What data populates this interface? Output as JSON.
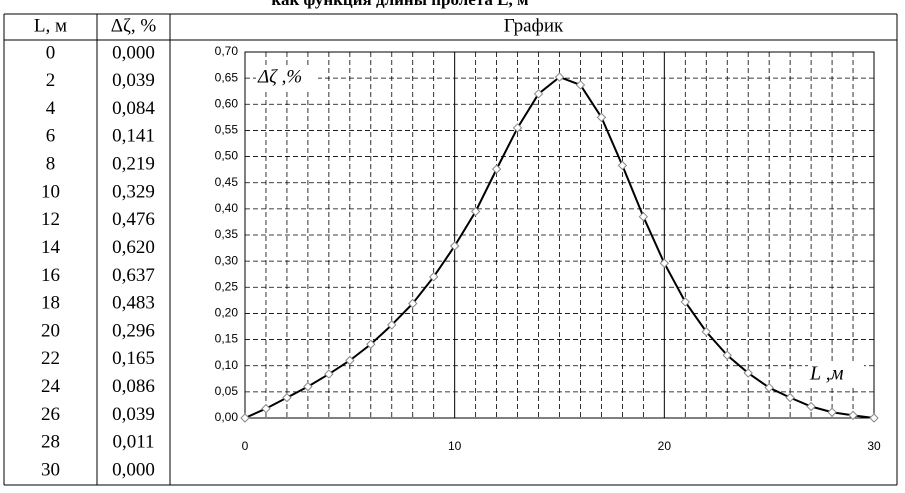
{
  "title": "как функция длины пролета L, м",
  "table": {
    "headers": [
      "L, м",
      "Δζ, %",
      "График"
    ],
    "rows": [
      [
        "0",
        "0,000"
      ],
      [
        "2",
        "0,039"
      ],
      [
        "4",
        "0,084"
      ],
      [
        "6",
        "0,141"
      ],
      [
        "8",
        "0,219"
      ],
      [
        "10",
        "0,329"
      ],
      [
        "12",
        "0,476"
      ],
      [
        "14",
        "0,620"
      ],
      [
        "16",
        "0,637"
      ],
      [
        "18",
        "0,483"
      ],
      [
        "20",
        "0,296"
      ],
      [
        "22",
        "0,165"
      ],
      [
        "24",
        "0,086"
      ],
      [
        "26",
        "0,039"
      ],
      [
        "28",
        "0,011"
      ],
      [
        "30",
        "0,000"
      ]
    ]
  },
  "chart_data": {
    "type": "line",
    "y_label": "Δζ ,%",
    "x_label": "L ,м",
    "x": [
      0,
      1,
      2,
      3,
      4,
      5,
      6,
      7,
      8,
      9,
      10,
      11,
      12,
      13,
      14,
      15,
      16,
      17,
      18,
      19,
      20,
      21,
      22,
      23,
      24,
      25,
      26,
      27,
      28,
      29,
      30
    ],
    "series": [
      {
        "color": "#000000",
        "marker_color": "#888888",
        "values": [
          0.0,
          0.018,
          0.039,
          0.06,
          0.084,
          0.11,
          0.141,
          0.178,
          0.219,
          0.27,
          0.329,
          0.395,
          0.476,
          0.555,
          0.62,
          0.652,
          0.637,
          0.575,
          0.483,
          0.385,
          0.296,
          0.222,
          0.165,
          0.12,
          0.086,
          0.058,
          0.039,
          0.022,
          0.011,
          0.005,
          0.0
        ]
      }
    ],
    "xlim": [
      0,
      30
    ],
    "xticks": [
      0,
      10,
      20,
      30
    ],
    "x_minor_ticks": [
      1,
      2,
      3,
      4,
      5,
      6,
      7,
      8,
      9,
      11,
      12,
      13,
      14,
      15,
      16,
      17,
      18,
      19,
      21,
      22,
      23,
      24,
      25,
      26,
      27,
      28,
      29
    ],
    "ylim": [
      0,
      0.7
    ],
    "yticks": [
      {
        "value": 0,
        "label": "0,00"
      },
      {
        "value": 0.05,
        "label": "0,05"
      },
      {
        "value": 0.1,
        "label": "0,10"
      },
      {
        "value": 0.15,
        "label": "0,15"
      },
      {
        "value": 0.2,
        "label": "0,20"
      },
      {
        "value": 0.25,
        "label": "0,25"
      },
      {
        "value": 0.3,
        "label": "0,30"
      },
      {
        "value": 0.35,
        "label": "0,35"
      },
      {
        "value": 0.4,
        "label": "0,40"
      },
      {
        "value": 0.45,
        "label": "0,45"
      },
      {
        "value": 0.5,
        "label": "0,50"
      },
      {
        "value": 0.55,
        "label": "0,55"
      },
      {
        "value": 0.6,
        "label": "0,60"
      },
      {
        "value": 0.65,
        "label": "0,65"
      },
      {
        "value": 0.7,
        "label": "0,70"
      }
    ],
    "grid": true
  }
}
